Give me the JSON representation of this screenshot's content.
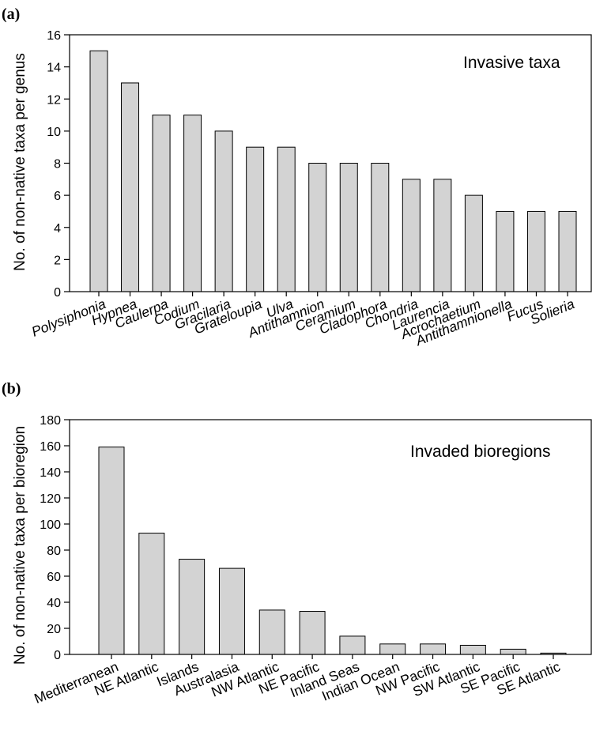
{
  "chart_data": [
    {
      "panel": "(a)",
      "type": "bar",
      "annotation": "Invasive taxa",
      "ylabel": "No. of non-native taxa per genus",
      "xlabel": "",
      "ylim": [
        0,
        16
      ],
      "yticks": [
        0,
        2,
        4,
        6,
        8,
        10,
        12,
        14,
        16
      ],
      "italic_categories": true,
      "categories": [
        "Polysiphonia",
        "Hypnea",
        "Caulerpa",
        "Codium",
        "Gracilaria",
        "Grateloupia",
        "Ulva",
        "Antithamnion",
        "Ceramium",
        "Cladophora",
        "Chondria",
        "Laurencia",
        "Acrochaetium",
        "Antithamnionella",
        "Fucus",
        "Solieria"
      ],
      "values": [
        15,
        13,
        11,
        11,
        10,
        9,
        9,
        8,
        8,
        8,
        7,
        7,
        6,
        5,
        5,
        5
      ],
      "bar_color": "#d3d3d3",
      "grid": false
    },
    {
      "panel": "(b)",
      "type": "bar",
      "annotation": "Invaded bioregions",
      "ylabel": "No. of non-native  taxa per bioregion",
      "xlabel": "",
      "ylim": [
        0,
        180
      ],
      "yticks": [
        0,
        20,
        40,
        60,
        80,
        100,
        120,
        140,
        160,
        180
      ],
      "italic_categories": false,
      "categories": [
        "Mediterranean",
        "NE Atlantic",
        "Islands",
        "Australasia",
        "NW Atlantic",
        "NE Pacific",
        "Inland Seas",
        "Indian Ocean",
        "NW Pacific",
        "SW Atlantic",
        "SE Pacific",
        "SE Atlantic"
      ],
      "values": [
        159,
        93,
        73,
        66,
        34,
        33,
        14,
        8,
        8,
        7,
        4,
        1
      ],
      "bar_color": "#d3d3d3",
      "grid": false
    }
  ]
}
